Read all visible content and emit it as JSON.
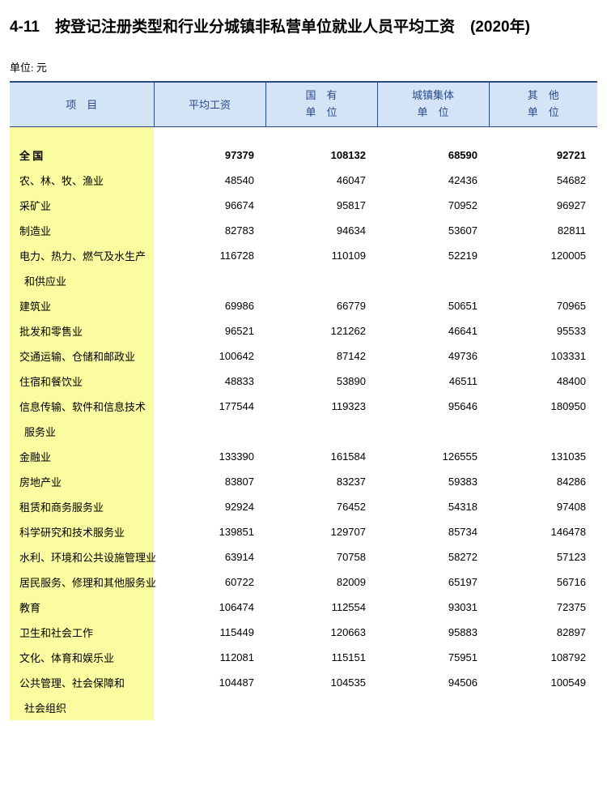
{
  "title": "4-11　按登记注册类型和行业分城镇非私营单位就业人员平均工资　(2020年)",
  "unit": "单位: 元",
  "colors": {
    "header_bg": "#d4e4f7",
    "header_text": "#2a4a8a",
    "header_border": "#2a4a8a",
    "label_bg": "#fbfba0",
    "page_bg": "#ffffff",
    "text": "#000000"
  },
  "fonts": {
    "title_family": "SimHei",
    "title_size_pt": 14,
    "body_family": "SimSun",
    "body_size_pt": 10,
    "num_family": "Arial"
  },
  "header": {
    "item": "项　目",
    "c1": "平均工资",
    "c2a": "国　有",
    "c2b": "单　位",
    "c3a": "城镇集体",
    "c3b": "单　位",
    "c4a": "其　他",
    "c4b": "单　位"
  },
  "rows": [
    {
      "type": "spacer"
    },
    {
      "type": "bold",
      "label": "全  国",
      "v": [
        "97379",
        "108132",
        "68590",
        "92721"
      ]
    },
    {
      "label": "农、林、牧、渔业",
      "v": [
        "48540",
        "46047",
        "42436",
        "54682"
      ]
    },
    {
      "label": "采矿业",
      "v": [
        "96674",
        "95817",
        "70952",
        "96927"
      ]
    },
    {
      "label": "制造业",
      "v": [
        "82783",
        "94634",
        "53607",
        "82811"
      ]
    },
    {
      "label": "电力、热力、燃气及水生产",
      "v": [
        "116728",
        "110109",
        "52219",
        "120005"
      ]
    },
    {
      "type": "cont",
      "label": " 和供应业"
    },
    {
      "label": "建筑业",
      "v": [
        "69986",
        "66779",
        "50651",
        "70965"
      ]
    },
    {
      "label": "批发和零售业",
      "v": [
        "96521",
        "121262",
        "46641",
        "95533"
      ]
    },
    {
      "label": "交通运输、仓储和邮政业",
      "v": [
        "100642",
        "87142",
        "49736",
        "103331"
      ]
    },
    {
      "label": "住宿和餐饮业",
      "v": [
        "48833",
        "53890",
        "46511",
        "48400"
      ]
    },
    {
      "label": "信息传输、软件和信息技术",
      "v": [
        "177544",
        "119323",
        "95646",
        "180950"
      ]
    },
    {
      "type": "cont",
      "label": " 服务业"
    },
    {
      "label": "金融业",
      "v": [
        "133390",
        "161584",
        "126555",
        "131035"
      ]
    },
    {
      "label": "房地产业",
      "v": [
        "83807",
        "83237",
        "59383",
        "84286"
      ]
    },
    {
      "label": "租赁和商务服务业",
      "v": [
        "92924",
        "76452",
        "54318",
        "97408"
      ]
    },
    {
      "label": "科学研究和技术服务业",
      "v": [
        "139851",
        "129707",
        "85734",
        "146478"
      ]
    },
    {
      "label": "水利、环境和公共设施管理业",
      "v": [
        "63914",
        "70758",
        "58272",
        "57123"
      ]
    },
    {
      "label": "居民服务、修理和其他服务业",
      "v": [
        "60722",
        "82009",
        "65197",
        "56716"
      ]
    },
    {
      "label": "教育",
      "v": [
        "106474",
        "112554",
        "93031",
        "72375"
      ]
    },
    {
      "label": "卫生和社会工作",
      "v": [
        "115449",
        "120663",
        "95883",
        "82897"
      ]
    },
    {
      "label": "文化、体育和娱乐业",
      "v": [
        "112081",
        "115151",
        "75951",
        "108792"
      ]
    },
    {
      "label": "公共管理、社会保障和",
      "v": [
        "104487",
        "104535",
        "94506",
        "100549"
      ]
    },
    {
      "type": "cont",
      "label": " 社会组织"
    }
  ]
}
